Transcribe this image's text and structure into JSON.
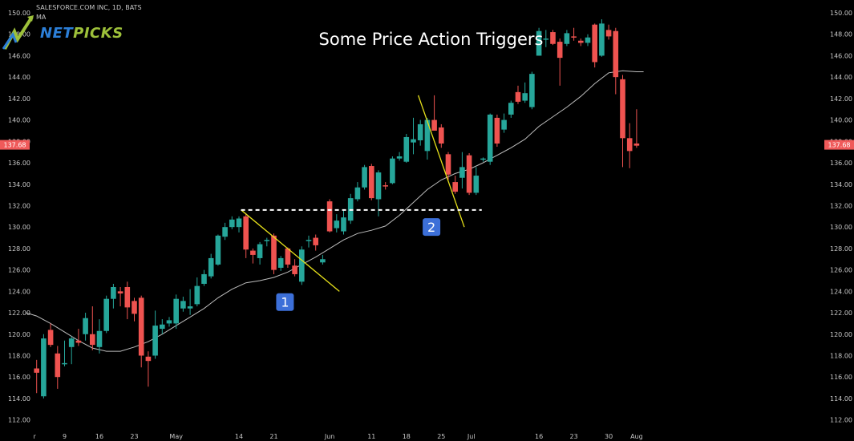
{
  "header": {
    "symbol_line": "SALESFORCE.COM INC, 1D, BATS",
    "indicator_label": "MA"
  },
  "logo": {
    "part1": "NET",
    "part2": "PICKS"
  },
  "chart_data": {
    "type": "candlestick",
    "title": "Some Price Action Triggers",
    "ylim": [
      111,
      150.6
    ],
    "y_ticks": [
      "150.00",
      "148.00",
      "146.00",
      "144.00",
      "142.00",
      "140.00",
      "138.00",
      "136.00",
      "134.00",
      "132.00",
      "130.00",
      "128.00",
      "126.00",
      "124.00",
      "122.00",
      "120.00",
      "118.00",
      "116.00",
      "114.00",
      "112.00"
    ],
    "x_labels": [
      {
        "label": "r",
        "index": -0.3
      },
      {
        "label": "9",
        "index": 4
      },
      {
        "label": "16",
        "index": 9
      },
      {
        "label": "23",
        "index": 14
      },
      {
        "label": "May",
        "index": 20
      },
      {
        "label": "14",
        "index": 29
      },
      {
        "label": "21",
        "index": 34
      },
      {
        "label": "Jun",
        "index": 42
      },
      {
        "label": "11",
        "index": 48
      },
      {
        "label": "18",
        "index": 53
      },
      {
        "label": "25",
        "index": 58
      },
      {
        "label": "Jul",
        "index": 62.3
      },
      {
        "label": "16",
        "index": 72
      },
      {
        "label": "23",
        "index": 77
      },
      {
        "label": "30",
        "index": 82
      },
      {
        "label": "Aug",
        "index": 86
      }
    ],
    "last_price": "137.68",
    "last_price_color": "#f05a5a",
    "up_color": "#26a69a",
    "down_color": "#ef5350",
    "ma_color": "#bdbdbd",
    "candles": [
      {
        "o": 116.8,
        "h": 117.6,
        "l": 114.5,
        "c": 116.4
      },
      {
        "o": 114.2,
        "h": 120.0,
        "l": 114.0,
        "c": 119.6
      },
      {
        "o": 120.4,
        "h": 121.0,
        "l": 118.8,
        "c": 119.0
      },
      {
        "o": 118.2,
        "h": 118.9,
        "l": 114.9,
        "c": 116.0
      },
      {
        "o": 117.2,
        "h": 119.4,
        "l": 117.0,
        "c": 117.3
      },
      {
        "o": 118.8,
        "h": 119.8,
        "l": 117.2,
        "c": 119.6
      },
      {
        "o": 119.4,
        "h": 120.5,
        "l": 118.9,
        "c": 119.2
      },
      {
        "o": 120.0,
        "h": 122.0,
        "l": 119.4,
        "c": 121.5
      },
      {
        "o": 120.0,
        "h": 122.6,
        "l": 118.5,
        "c": 119.0
      },
      {
        "o": 118.8,
        "h": 121.4,
        "l": 118.2,
        "c": 120.3
      },
      {
        "o": 120.3,
        "h": 123.6,
        "l": 120.1,
        "c": 123.3
      },
      {
        "o": 123.3,
        "h": 124.7,
        "l": 122.4,
        "c": 124.4
      },
      {
        "o": 124.0,
        "h": 124.4,
        "l": 122.6,
        "c": 123.8
      },
      {
        "o": 124.4,
        "h": 124.9,
        "l": 121.4,
        "c": 122.5
      },
      {
        "o": 123.1,
        "h": 123.4,
        "l": 121.2,
        "c": 121.9
      },
      {
        "o": 123.4,
        "h": 123.6,
        "l": 116.9,
        "c": 118.0
      },
      {
        "o": 117.9,
        "h": 118.4,
        "l": 115.1,
        "c": 117.5
      },
      {
        "o": 118.0,
        "h": 122.2,
        "l": 117.7,
        "c": 120.8
      },
      {
        "o": 120.5,
        "h": 121.4,
        "l": 120.0,
        "c": 120.9
      },
      {
        "o": 121.0,
        "h": 121.6,
        "l": 120.7,
        "c": 121.3
      },
      {
        "o": 121.0,
        "h": 123.7,
        "l": 120.5,
        "c": 123.3
      },
      {
        "o": 122.4,
        "h": 123.5,
        "l": 122.1,
        "c": 123.1
      },
      {
        "o": 122.4,
        "h": 124.2,
        "l": 121.8,
        "c": 122.6
      },
      {
        "o": 122.8,
        "h": 125.3,
        "l": 122.6,
        "c": 124.5
      },
      {
        "o": 124.7,
        "h": 126.0,
        "l": 124.5,
        "c": 125.6
      },
      {
        "o": 125.4,
        "h": 127.5,
        "l": 125.2,
        "c": 127.1
      },
      {
        "o": 126.5,
        "h": 129.3,
        "l": 126.4,
        "c": 129.2
      },
      {
        "o": 129.1,
        "h": 130.4,
        "l": 128.8,
        "c": 130.0
      },
      {
        "o": 130.0,
        "h": 131.0,
        "l": 129.8,
        "c": 130.7
      },
      {
        "o": 130.0,
        "h": 131.0,
        "l": 129.5,
        "c": 130.8
      },
      {
        "o": 131.0,
        "h": 131.3,
        "l": 127.1,
        "c": 127.9
      },
      {
        "o": 127.8,
        "h": 128.0,
        "l": 126.6,
        "c": 127.4
      },
      {
        "o": 127.1,
        "h": 128.6,
        "l": 126.5,
        "c": 128.4
      },
      {
        "o": 128.7,
        "h": 129.0,
        "l": 128.2,
        "c": 128.8
      },
      {
        "o": 129.2,
        "h": 129.4,
        "l": 125.6,
        "c": 126.0
      },
      {
        "o": 126.2,
        "h": 127.3,
        "l": 125.9,
        "c": 127.1
      },
      {
        "o": 128.0,
        "h": 128.1,
        "l": 126.2,
        "c": 126.5
      },
      {
        "o": 126.4,
        "h": 127.0,
        "l": 125.4,
        "c": 125.6
      },
      {
        "o": 124.9,
        "h": 128.2,
        "l": 124.6,
        "c": 127.9
      },
      {
        "o": 128.7,
        "h": 129.2,
        "l": 128.1,
        "c": 128.8
      },
      {
        "o": 129.0,
        "h": 129.3,
        "l": 127.8,
        "c": 128.3
      },
      {
        "o": 126.7,
        "h": 127.4,
        "l": 126.5,
        "c": 127.0
      },
      {
        "o": 132.4,
        "h": 132.6,
        "l": 129.5,
        "c": 129.6
      },
      {
        "o": 129.9,
        "h": 131.2,
        "l": 129.5,
        "c": 130.6
      },
      {
        "o": 129.6,
        "h": 131.6,
        "l": 129.3,
        "c": 130.9
      },
      {
        "o": 130.6,
        "h": 133.1,
        "l": 130.3,
        "c": 132.7
      },
      {
        "o": 132.6,
        "h": 134.2,
        "l": 132.4,
        "c": 133.7
      },
      {
        "o": 133.7,
        "h": 135.8,
        "l": 133.5,
        "c": 135.6
      },
      {
        "o": 135.7,
        "h": 135.9,
        "l": 132.5,
        "c": 132.7
      },
      {
        "o": 132.6,
        "h": 135.3,
        "l": 131.0,
        "c": 135.1
      },
      {
        "o": 133.9,
        "h": 134.2,
        "l": 133.5,
        "c": 133.8
      },
      {
        "o": 134.1,
        "h": 136.6,
        "l": 134.0,
        "c": 136.4
      },
      {
        "o": 136.4,
        "h": 137.0,
        "l": 136.2,
        "c": 136.6
      },
      {
        "o": 136.1,
        "h": 138.7,
        "l": 136.0,
        "c": 138.4
      },
      {
        "o": 137.9,
        "h": 140.2,
        "l": 136.8,
        "c": 138.2
      },
      {
        "o": 138.1,
        "h": 140.0,
        "l": 137.6,
        "c": 139.6
      },
      {
        "o": 137.1,
        "h": 140.2,
        "l": 136.3,
        "c": 140.0
      },
      {
        "o": 140.0,
        "h": 142.3,
        "l": 139.0,
        "c": 139.0
      },
      {
        "o": 139.3,
        "h": 139.6,
        "l": 137.4,
        "c": 137.8
      },
      {
        "o": 136.8,
        "h": 137.0,
        "l": 134.4,
        "c": 134.9
      },
      {
        "o": 134.2,
        "h": 134.8,
        "l": 133.1,
        "c": 133.3
      },
      {
        "o": 134.6,
        "h": 137.0,
        "l": 133.6,
        "c": 135.6
      },
      {
        "o": 136.7,
        "h": 136.9,
        "l": 133.0,
        "c": 133.2
      },
      {
        "o": 133.2,
        "h": 135.6,
        "l": 133.0,
        "c": 134.8
      },
      {
        "o": 136.3,
        "h": 136.5,
        "l": 136.1,
        "c": 136.4
      },
      {
        "o": 136.1,
        "h": 140.6,
        "l": 135.8,
        "c": 140.5
      },
      {
        "o": 140.2,
        "h": 140.5,
        "l": 137.5,
        "c": 137.8
      },
      {
        "o": 139.1,
        "h": 140.6,
        "l": 138.8,
        "c": 140.0
      },
      {
        "o": 140.5,
        "h": 141.8,
        "l": 140.2,
        "c": 141.6
      },
      {
        "o": 142.6,
        "h": 143.2,
        "l": 141.5,
        "c": 141.7
      },
      {
        "o": 141.8,
        "h": 143.5,
        "l": 141.6,
        "c": 142.5
      },
      {
        "o": 141.2,
        "h": 144.5,
        "l": 141.0,
        "c": 144.3
      },
      {
        "o": 146.0,
        "h": 148.6,
        "l": 146.0,
        "c": 148.3
      },
      {
        "o": 147.5,
        "h": 148.4,
        "l": 146.8,
        "c": 147.6
      },
      {
        "o": 148.2,
        "h": 148.4,
        "l": 147.0,
        "c": 147.1
      },
      {
        "o": 147.3,
        "h": 147.6,
        "l": 143.2,
        "c": 145.8
      },
      {
        "o": 147.1,
        "h": 148.4,
        "l": 146.9,
        "c": 148.1
      },
      {
        "o": 147.8,
        "h": 148.6,
        "l": 147.4,
        "c": 147.7
      },
      {
        "o": 147.4,
        "h": 147.6,
        "l": 146.9,
        "c": 147.2
      },
      {
        "o": 147.2,
        "h": 148.0,
        "l": 146.9,
        "c": 147.7
      },
      {
        "o": 148.9,
        "h": 149.0,
        "l": 144.9,
        "c": 145.4
      },
      {
        "o": 146.0,
        "h": 149.4,
        "l": 145.9,
        "c": 149.0
      },
      {
        "o": 148.4,
        "h": 148.9,
        "l": 147.5,
        "c": 147.8
      },
      {
        "o": 148.3,
        "h": 148.6,
        "l": 142.4,
        "c": 144.0
      },
      {
        "o": 143.8,
        "h": 144.2,
        "l": 135.6,
        "c": 138.3
      },
      {
        "o": 138.3,
        "h": 139.7,
        "l": 135.5,
        "c": 137.1
      },
      {
        "o": 137.8,
        "h": 141.0,
        "l": 137.4,
        "c": 137.6
      }
    ],
    "moving_average": [
      [
        -1.5,
        122.0
      ],
      [
        0,
        121.7
      ],
      [
        2,
        121.0
      ],
      [
        4,
        120.2
      ],
      [
        6,
        119.4
      ],
      [
        8,
        118.7
      ],
      [
        10,
        118.4
      ],
      [
        12,
        118.4
      ],
      [
        14,
        118.8
      ],
      [
        16,
        119.3
      ],
      [
        18,
        120.0
      ],
      [
        20,
        120.8
      ],
      [
        22,
        121.6
      ],
      [
        24,
        122.4
      ],
      [
        26,
        123.4
      ],
      [
        28,
        124.2
      ],
      [
        30,
        124.8
      ],
      [
        32,
        125.0
      ],
      [
        34,
        125.3
      ],
      [
        36,
        125.8
      ],
      [
        38,
        126.5
      ],
      [
        40,
        127.2
      ],
      [
        42,
        128.0
      ],
      [
        44,
        128.8
      ],
      [
        46,
        129.4
      ],
      [
        48,
        129.7
      ],
      [
        50,
        130.1
      ],
      [
        52,
        131.1
      ],
      [
        54,
        132.3
      ],
      [
        56,
        133.5
      ],
      [
        58,
        134.4
      ],
      [
        60,
        135.0
      ],
      [
        62,
        135.4
      ],
      [
        64,
        136.0
      ],
      [
        66,
        136.7
      ],
      [
        68,
        137.4
      ],
      [
        70,
        138.2
      ],
      [
        72,
        139.4
      ],
      [
        74,
        140.3
      ],
      [
        76,
        141.2
      ],
      [
        78,
        142.2
      ],
      [
        80,
        143.4
      ],
      [
        82,
        144.4
      ],
      [
        84,
        144.6
      ],
      [
        86,
        144.5
      ],
      [
        87,
        144.5
      ]
    ],
    "annotations": [
      {
        "type": "line",
        "color": "#e6e01a",
        "from": [
          29.3,
          131.6
        ],
        "to": [
          43.4,
          124.0
        ]
      },
      {
        "type": "line",
        "color": "#e6e01a",
        "from": [
          54.7,
          142.3
        ],
        "to": [
          61.3,
          130.0
        ]
      },
      {
        "type": "dashed_line",
        "color": "#ffffff",
        "from": [
          29.3,
          131.6
        ],
        "to": [
          63.8,
          131.6
        ]
      },
      {
        "type": "label",
        "text": "1",
        "at": [
          35.6,
          123.0
        ],
        "color": "#3c6fd8"
      },
      {
        "type": "label",
        "text": "2",
        "at": [
          56.6,
          130.0
        ],
        "color": "#3c6fd8"
      }
    ]
  }
}
